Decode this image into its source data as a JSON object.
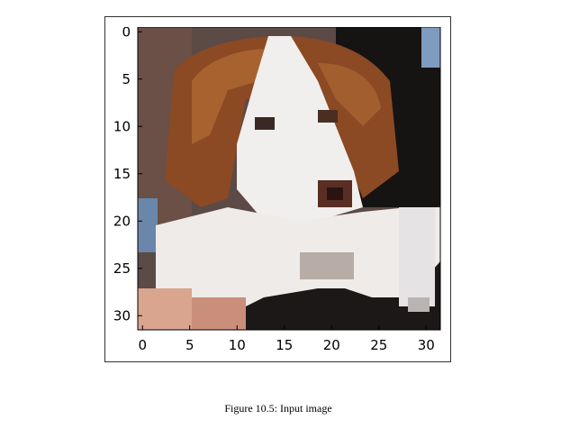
{
  "figure": {
    "caption": "Figure 10.5: Input image",
    "image_description_icon": "dog-photo-image",
    "x_ticks": [
      "0",
      "5",
      "10",
      "15",
      "20",
      "25",
      "30"
    ],
    "y_ticks": [
      "0",
      "5",
      "10",
      "15",
      "20",
      "25",
      "30"
    ]
  },
  "chart_data": {
    "type": "heatmap",
    "xlim": [
      -0.5,
      31.5
    ],
    "ylim": [
      31.5,
      -0.5
    ],
    "x_ticks": [
      0,
      5,
      10,
      15,
      20,
      25,
      30
    ],
    "y_ticks": [
      0,
      5,
      10,
      15,
      20,
      25,
      30
    ],
    "grid": false
  },
  "colors": {
    "brown": "#8b4a23",
    "white": "#f0eeec",
    "dark": "#161313",
    "gray": "#c9c3bf",
    "blue": "#6a86aa",
    "skin": "#d9a58f",
    "nose": "#5a2e24",
    "frame": "#333333"
  }
}
